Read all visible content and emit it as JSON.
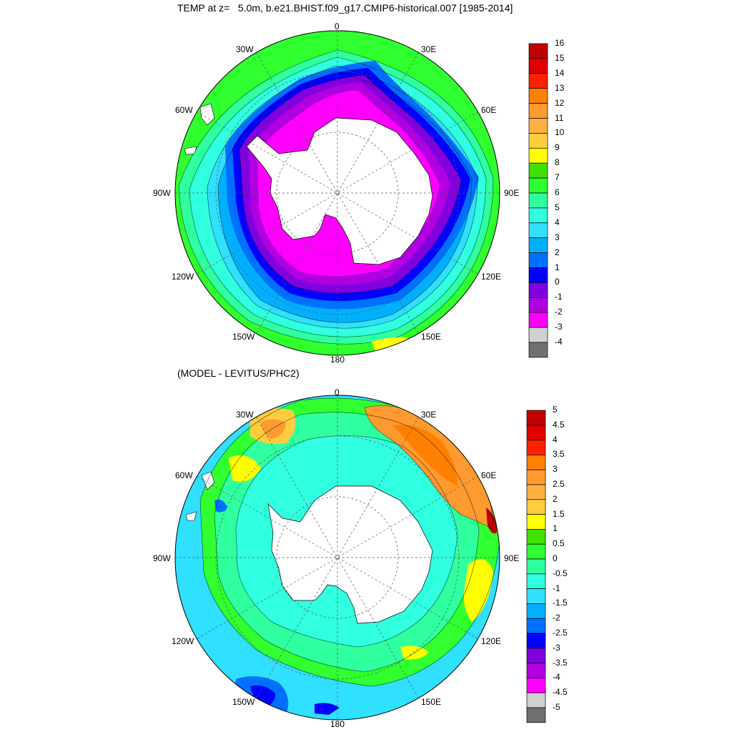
{
  "panel_top": {
    "title": "TEMP at z=   5.0m, b.e21.BHIST.f09_g17.CMIP6-historical.007 [1985-2014]",
    "lon_labels": {
      "0": "0",
      "30W": "30W",
      "30E": "30E",
      "60W": "60W",
      "60E": "60E",
      "90W": "90W",
      "90E": "90E",
      "120W": "120W",
      "120E": "120E",
      "150W": "150W",
      "150E": "150E",
      "180": "180"
    },
    "colorbar": {
      "labels": [
        "16",
        "15",
        "14",
        "13",
        "12",
        "11",
        "10",
        "9",
        "8",
        "7",
        "6",
        "5",
        "4",
        "3",
        "2",
        "1",
        "0",
        "-1",
        "-2",
        "-3",
        "-4"
      ],
      "colors": [
        "#c00000",
        "#e00000",
        "#ff2000",
        "#ff8000",
        "#ff9a30",
        "#ffb040",
        "#ffcc40",
        "#ffff00",
        "#40e000",
        "#30ff30",
        "#30ffa0",
        "#30ffe0",
        "#30e0ff",
        "#00b0ff",
        "#0070ff",
        "#0000ff",
        "#8000e0",
        "#b000e0",
        "#ff00ff",
        "#d0d0d0",
        "#707070"
      ]
    }
  },
  "panel_bottom": {
    "title": "(MODEL - LEVITUS/PHC2)",
    "lon_labels": {
      "0": "0",
      "30W": "30W",
      "30E": "30E",
      "60W": "60W",
      "60E": "60E",
      "90W": "90W",
      "90E": "90E",
      "120W": "120W",
      "120E": "120E",
      "150W": "150W",
      "150E": "150E",
      "180": "180"
    },
    "colorbar": {
      "labels": [
        "5",
        "4.5",
        "4",
        "3.5",
        "3",
        "2.5",
        "2",
        "1.5",
        "1",
        "0.5",
        "0",
        "-0.5",
        "-1",
        "-1.5",
        "-2",
        "-2.5",
        "-3",
        "-3.5",
        "-4",
        "-4.5",
        "-5"
      ],
      "colors": [
        "#c00000",
        "#e00000",
        "#ff2000",
        "#ff8000",
        "#ff9a30",
        "#ffb040",
        "#ffcc40",
        "#ffff00",
        "#40e000",
        "#30ff30",
        "#30ffa0",
        "#30ffe0",
        "#30e0ff",
        "#00b0ff",
        "#0070ff",
        "#0000ff",
        "#8000e0",
        "#b000e0",
        "#ff00ff",
        "#d0d0d0",
        "#707070"
      ]
    }
  },
  "map_colors": {
    "land": "#ffffff",
    "warm_band": "#30e000",
    "yellow": "#ffff00",
    "cyan": "#30ffe0",
    "light_cyan": "#30e0ff",
    "blue": "#0070ff",
    "violet": "#8000e0",
    "magenta": "#ff00ff",
    "orange": "#ff9a30"
  }
}
